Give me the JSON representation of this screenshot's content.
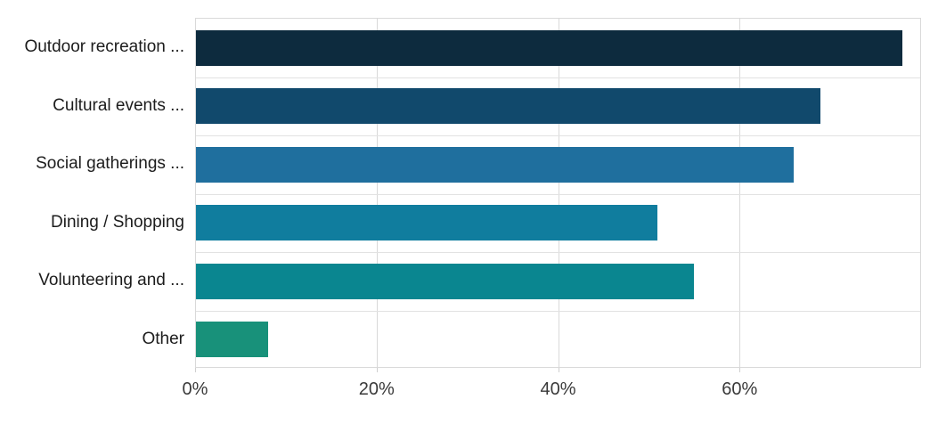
{
  "chart_data": {
    "type": "bar",
    "orientation": "horizontal",
    "title": "",
    "xlabel": "",
    "ylabel": "",
    "categories": [
      "Outdoor recreation ...",
      "Cultural events ...",
      "Social gatherings ...",
      "Dining / Shopping",
      "Volunteering and ...",
      "Other"
    ],
    "values": [
      78,
      69,
      66,
      51,
      55,
      8
    ],
    "value_unit": "%",
    "bar_colors": [
      "#0d2b3e",
      "#11496c",
      "#1f6f9e",
      "#107d9e",
      "#0a8690",
      "#18917a"
    ],
    "xlim": [
      0,
      80
    ],
    "x_ticks": [
      {
        "value": 0,
        "label": "0%"
      },
      {
        "value": 20,
        "label": "20%"
      },
      {
        "value": 40,
        "label": "40%"
      },
      {
        "value": 60,
        "label": "60%"
      }
    ],
    "gridlines": {
      "vertical_at": [
        20,
        40,
        60
      ],
      "horizontal": "row-boundaries",
      "color": "#d9d9d9"
    },
    "legend": "none",
    "background": "#ffffff"
  }
}
